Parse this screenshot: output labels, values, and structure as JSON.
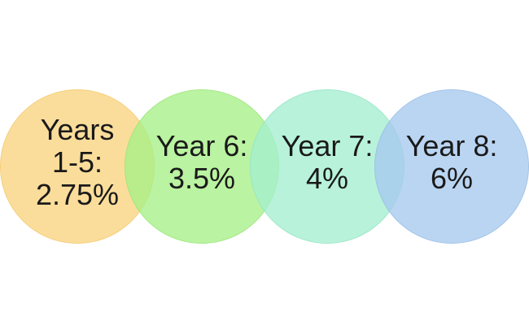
{
  "circles": [
    {
      "label": "Years\n1-5:\n2.75%",
      "color": "#fad37f",
      "border": "#f2c567",
      "text_offset": "-10px"
    },
    {
      "label": "Year 6:\n3.5%",
      "color": "#a7ef86",
      "border": "#94e273",
      "text_offset": "-10px"
    },
    {
      "label": "Year 7:\n4%",
      "color": "#a4eed0",
      "border": "#8fe2c0",
      "text_offset": "-10px"
    },
    {
      "label": "Year 8:\n6%",
      "color": "#a7c9ee",
      "border": "#93b9e3",
      "text_offset": "-10px"
    }
  ]
}
